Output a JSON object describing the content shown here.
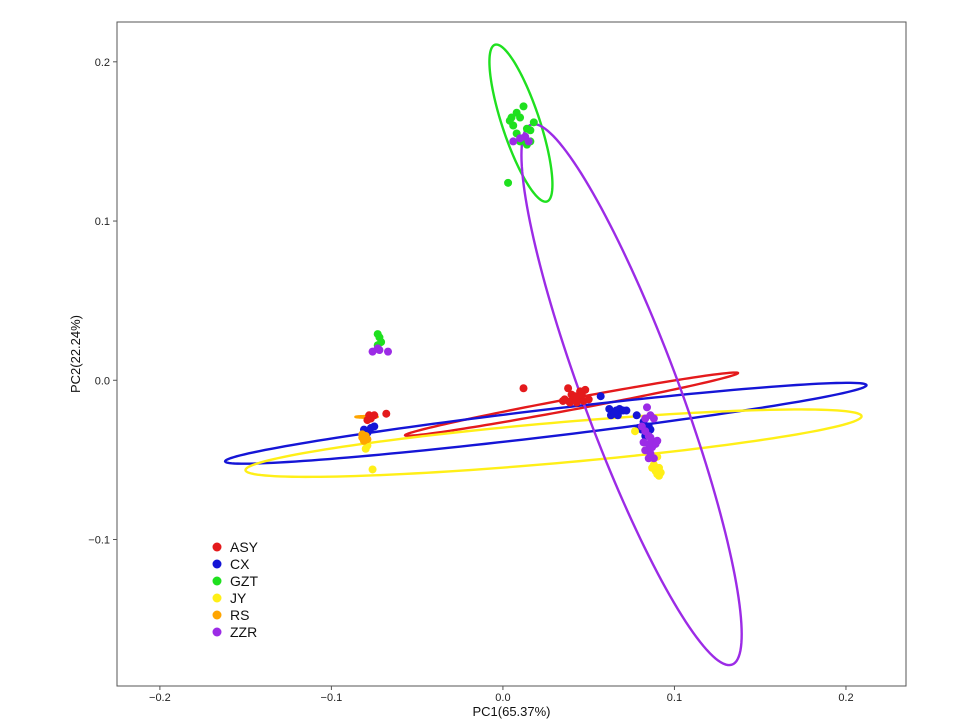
{
  "chart_data": {
    "type": "scatter",
    "title": "",
    "xlabel": "PC1(65.37%)",
    "ylabel": "PC2(22.24%)",
    "xlim": [
      -0.225,
      0.235
    ],
    "ylim": [
      -0.192,
      0.225
    ],
    "xticks": [
      -0.2,
      -0.1,
      0.0,
      0.1,
      0.2
    ],
    "xtick_labels": [
      "−0.2",
      "−0.1",
      "0.0",
      "0.1",
      "0.2"
    ],
    "yticks": [
      -0.1,
      0.0,
      0.1,
      0.2
    ],
    "ytick_labels": [
      "−0.1",
      "0.0",
      "0.1",
      "0.2"
    ],
    "grid": false,
    "legend_position": "bottom-left",
    "series": [
      {
        "name": "ASY",
        "color": "#e41a1c",
        "points": [
          [
            -0.078,
            -0.022
          ],
          [
            -0.075,
            -0.022
          ],
          [
            -0.077,
            -0.024
          ],
          [
            -0.068,
            -0.021
          ],
          [
            -0.079,
            -0.025
          ],
          [
            0.012,
            -0.005
          ],
          [
            0.038,
            -0.005
          ],
          [
            0.045,
            -0.007
          ],
          [
            0.048,
            -0.006
          ],
          [
            0.04,
            -0.009
          ],
          [
            0.036,
            -0.012
          ],
          [
            0.041,
            -0.012
          ],
          [
            0.044,
            -0.011
          ],
          [
            0.047,
            -0.013
          ],
          [
            0.05,
            -0.012
          ],
          [
            0.039,
            -0.014
          ],
          [
            0.043,
            -0.014
          ],
          [
            0.042,
            -0.01
          ],
          [
            0.035,
            -0.013
          ],
          [
            0.046,
            -0.009
          ]
        ],
        "ellipse": {
          "center": [
            0.04,
            -0.015
          ],
          "semi_axis_a": 0.099,
          "semi_axis_b": 0.0035,
          "angle_deg": 11.4
        }
      },
      {
        "name": "CX",
        "color": "#1515d6",
        "points": [
          [
            -0.075,
            -0.029
          ],
          [
            -0.081,
            -0.031
          ],
          [
            -0.079,
            -0.033
          ],
          [
            -0.077,
            -0.03
          ],
          [
            0.057,
            -0.01
          ],
          [
            0.062,
            -0.018
          ],
          [
            0.064,
            -0.02
          ],
          [
            0.066,
            -0.019
          ],
          [
            0.068,
            -0.018
          ],
          [
            0.063,
            -0.022
          ],
          [
            0.067,
            -0.022
          ],
          [
            0.065,
            -0.021
          ],
          [
            0.07,
            -0.019
          ],
          [
            0.072,
            -0.019
          ],
          [
            0.078,
            -0.022
          ],
          [
            0.079,
            -0.03
          ],
          [
            0.082,
            -0.026
          ],
          [
            0.085,
            -0.029
          ],
          [
            0.084,
            -0.033
          ],
          [
            0.081,
            -0.031
          ],
          [
            0.086,
            -0.031
          ],
          [
            0.083,
            -0.035
          ]
        ],
        "ellipse": {
          "center": [
            0.025,
            -0.027
          ],
          "semi_axis_a": 0.1885,
          "semi_axis_b": 0.0085,
          "angle_deg": 7.3
        }
      },
      {
        "name": "GZT",
        "color": "#1fe01f",
        "points": [
          [
            0.005,
            0.165
          ],
          [
            0.008,
            0.168
          ],
          [
            0.01,
            0.165
          ],
          [
            0.012,
            0.172
          ],
          [
            0.006,
            0.16
          ],
          [
            0.004,
            0.163
          ],
          [
            0.014,
            0.158
          ],
          [
            0.016,
            0.157
          ],
          [
            0.018,
            0.162
          ],
          [
            0.008,
            0.155
          ],
          [
            0.012,
            0.152
          ],
          [
            0.01,
            0.15
          ],
          [
            0.014,
            0.148
          ],
          [
            0.016,
            0.15
          ],
          [
            0.003,
            0.124
          ],
          [
            -0.073,
            0.029
          ],
          [
            -0.072,
            0.027
          ],
          [
            -0.071,
            0.024
          ],
          [
            -0.073,
            0.022
          ]
        ],
        "ellipse": {
          "center": [
            0.0105,
            0.1615
          ],
          "semi_axis_a": 0.0515,
          "semi_axis_b": 0.011,
          "angle_deg": -73
        }
      },
      {
        "name": "JY",
        "color": "#ffef17",
        "points": [
          [
            -0.081,
            -0.038
          ],
          [
            -0.079,
            -0.041
          ],
          [
            -0.08,
            -0.043
          ],
          [
            -0.076,
            -0.056
          ],
          [
            0.077,
            -0.032
          ],
          [
            0.085,
            -0.046
          ],
          [
            0.088,
            -0.049
          ],
          [
            0.09,
            -0.048
          ],
          [
            0.088,
            -0.053
          ],
          [
            0.091,
            -0.055
          ],
          [
            0.089,
            -0.057
          ],
          [
            0.092,
            -0.058
          ],
          [
            0.091,
            -0.06
          ],
          [
            0.09,
            -0.059
          ],
          [
            0.087,
            -0.055
          ],
          [
            0.083,
            -0.044
          ]
        ],
        "ellipse": {
          "center": [
            0.0295,
            -0.0395
          ],
          "semi_axis_a": 0.1804,
          "semi_axis_b": 0.0127,
          "angle_deg": 5.4
        }
      },
      {
        "name": "RS",
        "color": "#ffa500",
        "points": [
          [
            -0.082,
            -0.034
          ],
          [
            -0.08,
            -0.035
          ],
          [
            -0.082,
            -0.036
          ],
          [
            -0.081,
            -0.038
          ],
          [
            -0.079,
            -0.037
          ]
        ],
        "ellipse": {
          "center": [
            -0.0795,
            -0.023
          ],
          "semi_axis_a": 0.0065,
          "semi_axis_b": 0.0005,
          "angle_deg": 0
        }
      },
      {
        "name": "ZZR",
        "color": "#9c2be6",
        "points": [
          [
            -0.076,
            0.018
          ],
          [
            -0.073,
            0.02
          ],
          [
            -0.072,
            0.019
          ],
          [
            -0.067,
            0.018
          ],
          [
            0.006,
            0.15
          ],
          [
            0.01,
            0.152
          ],
          [
            0.013,
            0.153
          ],
          [
            0.015,
            0.15
          ],
          [
            0.081,
            -0.029
          ],
          [
            0.083,
            -0.032
          ],
          [
            0.085,
            -0.035
          ],
          [
            0.087,
            -0.038
          ],
          [
            0.089,
            -0.04
          ],
          [
            0.082,
            -0.039
          ],
          [
            0.086,
            -0.036
          ],
          [
            0.084,
            -0.017
          ],
          [
            0.083,
            -0.024
          ],
          [
            0.086,
            -0.022
          ],
          [
            0.088,
            -0.024
          ],
          [
            0.087,
            -0.042
          ],
          [
            0.085,
            -0.049
          ],
          [
            0.088,
            -0.049
          ],
          [
            0.09,
            -0.038
          ],
          [
            0.083,
            -0.044
          ],
          [
            0.086,
            -0.046
          ],
          [
            0.085,
            -0.04
          ]
        ],
        "ellipse": {
          "center": [
            0.075,
            -0.009
          ],
          "semi_axis_a": 0.1794,
          "semi_axis_b": 0.0282,
          "angle_deg": -71
        }
      }
    ]
  }
}
